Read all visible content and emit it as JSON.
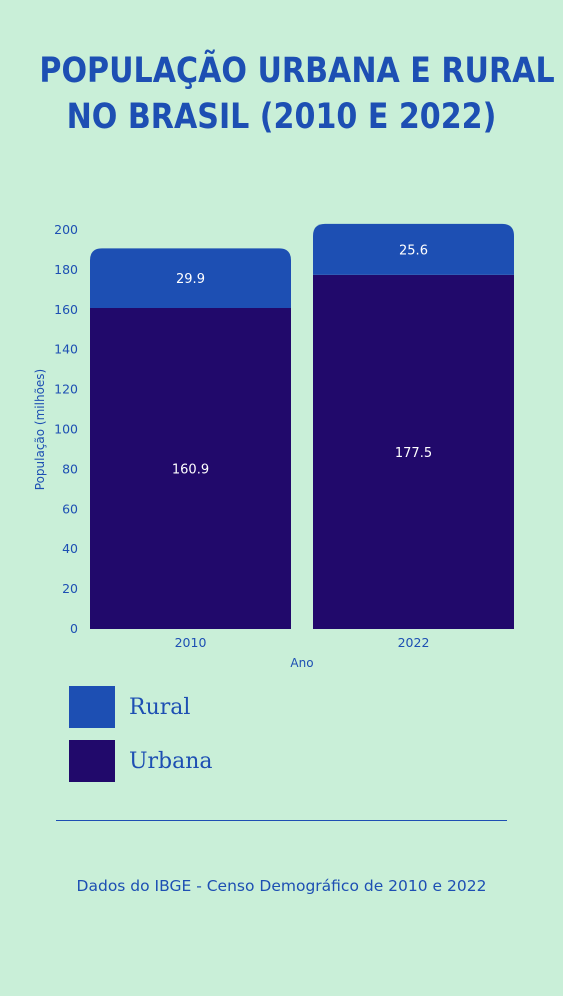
{
  "title_lines": [
    "POPULAÇÃO URBANA E RURAL",
    "NO BRASIL (2010 E 2022)"
  ],
  "colors": {
    "background": "#c9efd8",
    "rural": "#1d4fb3",
    "urbana": "#21096b",
    "text": "#1d4fb3"
  },
  "chart_data": {
    "type": "bar",
    "stacked": true,
    "categories": [
      "2010",
      "2022"
    ],
    "series": [
      {
        "name": "Urbana",
        "values": [
          160.9,
          177.5
        ],
        "labels": [
          "160.9",
          "177.5"
        ]
      },
      {
        "name": "Rural",
        "values": [
          29.9,
          25.6
        ],
        "labels": [
          "29.9",
          "25.6"
        ]
      }
    ],
    "xlabel": "Ano",
    "ylabel": "População (milhões)",
    "ylim": [
      0,
      200
    ],
    "yticks": [
      0,
      20,
      40,
      60,
      80,
      100,
      120,
      140,
      160,
      180,
      200
    ],
    "grid": false,
    "legend_position": "bottom-left"
  },
  "legend": [
    {
      "label": "Rural",
      "color": "#1d4fb3"
    },
    {
      "label": "Urbana",
      "color": "#21096b"
    }
  ],
  "source": "Dados do IBGE - Censo Demográfico de 2010 e 2022"
}
